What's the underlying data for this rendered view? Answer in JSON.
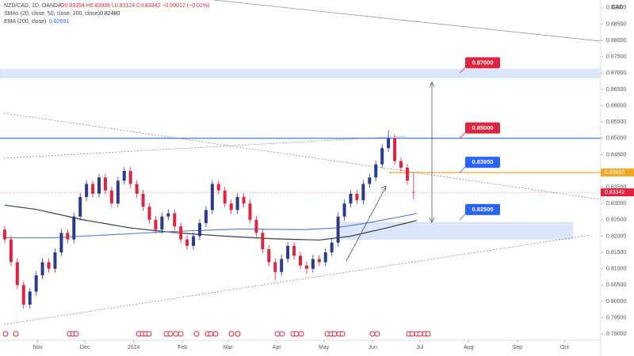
{
  "header": {
    "symbol": "NZD/CAD, 1D, OANDA",
    "ohlc": "O0.83354 H0.83936 L0.83124 C0.83342 −0.00012 (−0.01%)",
    "sma_value": "0.82480",
    "ema_value": "0.82691"
  },
  "chart_data": {
    "type": "candlestick",
    "currency": "CAD",
    "x": [
      10,
      14,
      18,
      22,
      26,
      30,
      34,
      38,
      42,
      46,
      50,
      54,
      58,
      62,
      66,
      70,
      74,
      78,
      82,
      86,
      90,
      94,
      98,
      102,
      106,
      110,
      114,
      118,
      122,
      126,
      130,
      134,
      138,
      142,
      146,
      150,
      154,
      158,
      162,
      166,
      170,
      174,
      178,
      182,
      186,
      190,
      194,
      198,
      202,
      206,
      210,
      214,
      218,
      222,
      226,
      230,
      234,
      238,
      242,
      246,
      250,
      254,
      258,
      262,
      266,
      270
    ],
    "open": [
      0.822,
      0.819,
      0.812,
      0.805,
      0.799,
      0.803,
      0.808,
      0.812,
      0.81,
      0.815,
      0.821,
      0.819,
      0.826,
      0.832,
      0.836,
      0.833,
      0.838,
      0.834,
      0.83,
      0.837,
      0.84,
      0.836,
      0.833,
      0.829,
      0.825,
      0.822,
      0.826,
      0.827,
      0.823,
      0.819,
      0.817,
      0.82,
      0.824,
      0.828,
      0.836,
      0.834,
      0.83,
      0.828,
      0.832,
      0.83,
      0.825,
      0.821,
      0.816,
      0.812,
      0.809,
      0.813,
      0.817,
      0.814,
      0.811,
      0.81,
      0.813,
      0.812,
      0.815,
      0.818,
      0.826,
      0.83,
      0.833,
      0.831,
      0.836,
      0.838,
      0.842,
      0.847,
      0.85,
      0.843,
      0.841,
      0.83354
    ],
    "high": [
      0.8232,
      0.8202,
      0.8132,
      0.8062,
      0.8042,
      0.8092,
      0.8132,
      0.8132,
      0.8162,
      0.8222,
      0.8222,
      0.8272,
      0.8332,
      0.8372,
      0.8372,
      0.8392,
      0.8392,
      0.8352,
      0.8382,
      0.8412,
      0.8412,
      0.8372,
      0.8342,
      0.8302,
      0.8262,
      0.8272,
      0.8282,
      0.8282,
      0.8242,
      0.8202,
      0.8212,
      0.8252,
      0.8292,
      0.8372,
      0.8372,
      0.8352,
      0.8312,
      0.8332,
      0.8332,
      0.8312,
      0.8262,
      0.8222,
      0.8172,
      0.8132,
      0.8142,
      0.8182,
      0.8182,
      0.8152,
      0.8122,
      0.8142,
      0.8142,
      0.8162,
      0.8192,
      0.8272,
      0.8312,
      0.8342,
      0.8342,
      0.8372,
      0.8392,
      0.8432,
      0.8482,
      0.8525,
      0.8512,
      0.8442,
      0.8422,
      0.83936
    ],
    "low": [
      0.8178,
      0.8108,
      0.8038,
      0.7978,
      0.7978,
      0.8018,
      0.8068,
      0.8088,
      0.8088,
      0.8138,
      0.8178,
      0.8178,
      0.8248,
      0.8308,
      0.8318,
      0.8318,
      0.8328,
      0.8288,
      0.8288,
      0.8358,
      0.8348,
      0.8318,
      0.8278,
      0.8238,
      0.8208,
      0.8208,
      0.8248,
      0.8218,
      0.8178,
      0.8158,
      0.8158,
      0.8188,
      0.8228,
      0.8268,
      0.8328,
      0.8288,
      0.8268,
      0.8268,
      0.8288,
      0.8238,
      0.8198,
      0.8148,
      0.8108,
      0.8065,
      0.8078,
      0.8118,
      0.8128,
      0.8098,
      0.8085,
      0.8088,
      0.8108,
      0.8108,
      0.8138,
      0.8168,
      0.8248,
      0.8288,
      0.8298,
      0.8298,
      0.8348,
      0.8368,
      0.8408,
      0.8458,
      0.8418,
      0.8398,
      0.8358,
      0.83124
    ],
    "close": [
      0.819,
      0.812,
      0.805,
      0.799,
      0.803,
      0.808,
      0.812,
      0.81,
      0.815,
      0.821,
      0.819,
      0.826,
      0.832,
      0.836,
      0.833,
      0.838,
      0.834,
      0.83,
      0.837,
      0.84,
      0.836,
      0.833,
      0.829,
      0.825,
      0.822,
      0.826,
      0.827,
      0.823,
      0.819,
      0.817,
      0.82,
      0.824,
      0.828,
      0.836,
      0.834,
      0.83,
      0.828,
      0.832,
      0.83,
      0.825,
      0.821,
      0.816,
      0.812,
      0.809,
      0.813,
      0.817,
      0.814,
      0.811,
      0.81,
      0.813,
      0.812,
      0.815,
      0.818,
      0.826,
      0.83,
      0.833,
      0.831,
      0.836,
      0.838,
      0.842,
      0.847,
      0.85,
      0.843,
      0.841,
      0.837,
      0.83342
    ],
    "up_color": "#2b3a8f",
    "down_color": "#e0243f",
    "series": [
      {
        "name": "SMAs (20, close, 50, close, 200, close)",
        "color": "#3c3c3c",
        "x": [
          10,
          30,
          60,
          90,
          120,
          150,
          180,
          210,
          230,
          250,
          272
        ],
        "values": [
          0.8295,
          0.8282,
          0.825,
          0.8225,
          0.821,
          0.82,
          0.8192,
          0.8188,
          0.82,
          0.8222,
          0.8248
        ]
      },
      {
        "name": "EMA (200, close)",
        "color": "#5b7de6",
        "x": [
          10,
          40,
          80,
          120,
          160,
          200,
          220,
          240,
          260,
          272
        ],
        "values": [
          0.8195,
          0.8195,
          0.8205,
          0.8215,
          0.8222,
          0.822,
          0.8225,
          0.824,
          0.8258,
          0.8269
        ]
      }
    ],
    "zones": [
      {
        "range": [
          0.8686,
          0.8711
        ],
        "x_range": [
          7,
          389
        ]
      },
      {
        "range": [
          0.8191,
          0.8242
        ],
        "x_range": [
          224,
          371
        ]
      }
    ],
    "levels": [
      {
        "value": 0.87,
        "label": "0.87000",
        "color": "#e0243f"
      },
      {
        "value": 0.85,
        "label": "0.85000",
        "color": "#e0243f"
      },
      {
        "value": 0.8395,
        "label": "0.83950",
        "color": "#2962ff"
      },
      {
        "value": 0.825,
        "label": "0.82500",
        "color": "#2962ff"
      }
    ],
    "lines": [
      {
        "value": 0.85,
        "color": "#2962ff",
        "x_range": [
          7,
          389
        ]
      },
      {
        "value": 0.8395,
        "color": "#f5a623",
        "x_range": [
          254,
          389
        ]
      }
    ],
    "axis_labels": [
      {
        "value": 0.8395,
        "label": "0.83950",
        "color": "#f5a623"
      }
    ],
    "xlim": [
      7,
      389
    ],
    "xticks": [
      {
        "value": 31,
        "label": "Nov"
      },
      {
        "value": 61,
        "label": "Dec"
      },
      {
        "value": 92,
        "label": "2024"
      },
      {
        "value": 123,
        "label": "Feb"
      },
      {
        "value": 152,
        "label": "Mar"
      },
      {
        "value": 183,
        "label": "Apr"
      },
      {
        "value": 213,
        "label": "May"
      },
      {
        "value": 244,
        "label": "Jun"
      },
      {
        "value": 274,
        "label": "Jul"
      },
      {
        "value": 305,
        "label": "Aug"
      },
      {
        "value": 336,
        "label": "Sep"
      },
      {
        "value": 366,
        "label": "Oct"
      }
    ],
    "ylim": [
      0.7881,
      0.8924
    ],
    "yticks": [
      {
        "value": 0.79,
        "label": "0.79000"
      },
      {
        "value": 0.795,
        "label": "0.79500"
      },
      {
        "value": 0.8,
        "label": "0.80000"
      },
      {
        "value": 0.805,
        "label": "0.80500"
      },
      {
        "value": 0.81,
        "label": "0.81000"
      },
      {
        "value": 0.815,
        "label": "0.81500"
      },
      {
        "value": 0.82,
        "label": "0.82000"
      },
      {
        "value": 0.825,
        "label": "0.82500"
      },
      {
        "value": 0.83,
        "label": "0.83000"
      },
      {
        "value": 0.835,
        "label": "0.83500"
      },
      {
        "value": 0.84,
        "label": "0.84000"
      },
      {
        "value": 0.845,
        "label": "0.84500"
      },
      {
        "value": 0.85,
        "label": "0.85000"
      },
      {
        "value": 0.855,
        "label": "0.85500"
      },
      {
        "value": 0.86,
        "label": "0.86000"
      },
      {
        "value": 0.865,
        "label": "0.86500"
      },
      {
        "value": 0.87,
        "label": "0.87000"
      },
      {
        "value": 0.875,
        "label": "0.87500"
      },
      {
        "value": 0.88,
        "label": "0.88000"
      },
      {
        "value": 0.885,
        "label": "0.88500"
      },
      {
        "value": 0.89,
        "label": "0.89000"
      }
    ]
  }
}
